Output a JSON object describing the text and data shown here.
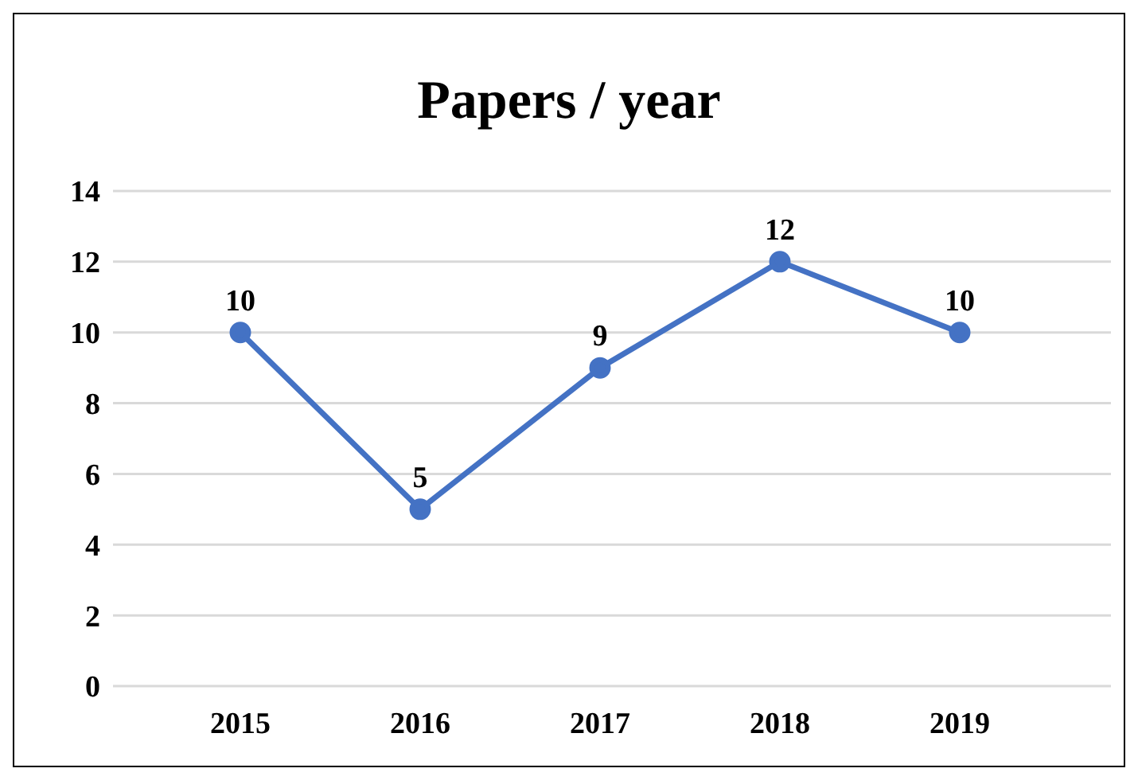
{
  "chart_data": {
    "type": "line",
    "title": "Papers / year",
    "categories": [
      "2015",
      "2016",
      "2017",
      "2018",
      "2019"
    ],
    "series": [
      {
        "color": "#4472c4",
        "values": [
          10,
          5,
          9,
          12,
          10
        ]
      }
    ],
    "ylim": [
      0,
      14
    ],
    "yticks": [
      0,
      2,
      4,
      6,
      8,
      10,
      12,
      14
    ],
    "grid": "y",
    "marker": "circle",
    "line_style": "solid",
    "data_labels": true
  }
}
